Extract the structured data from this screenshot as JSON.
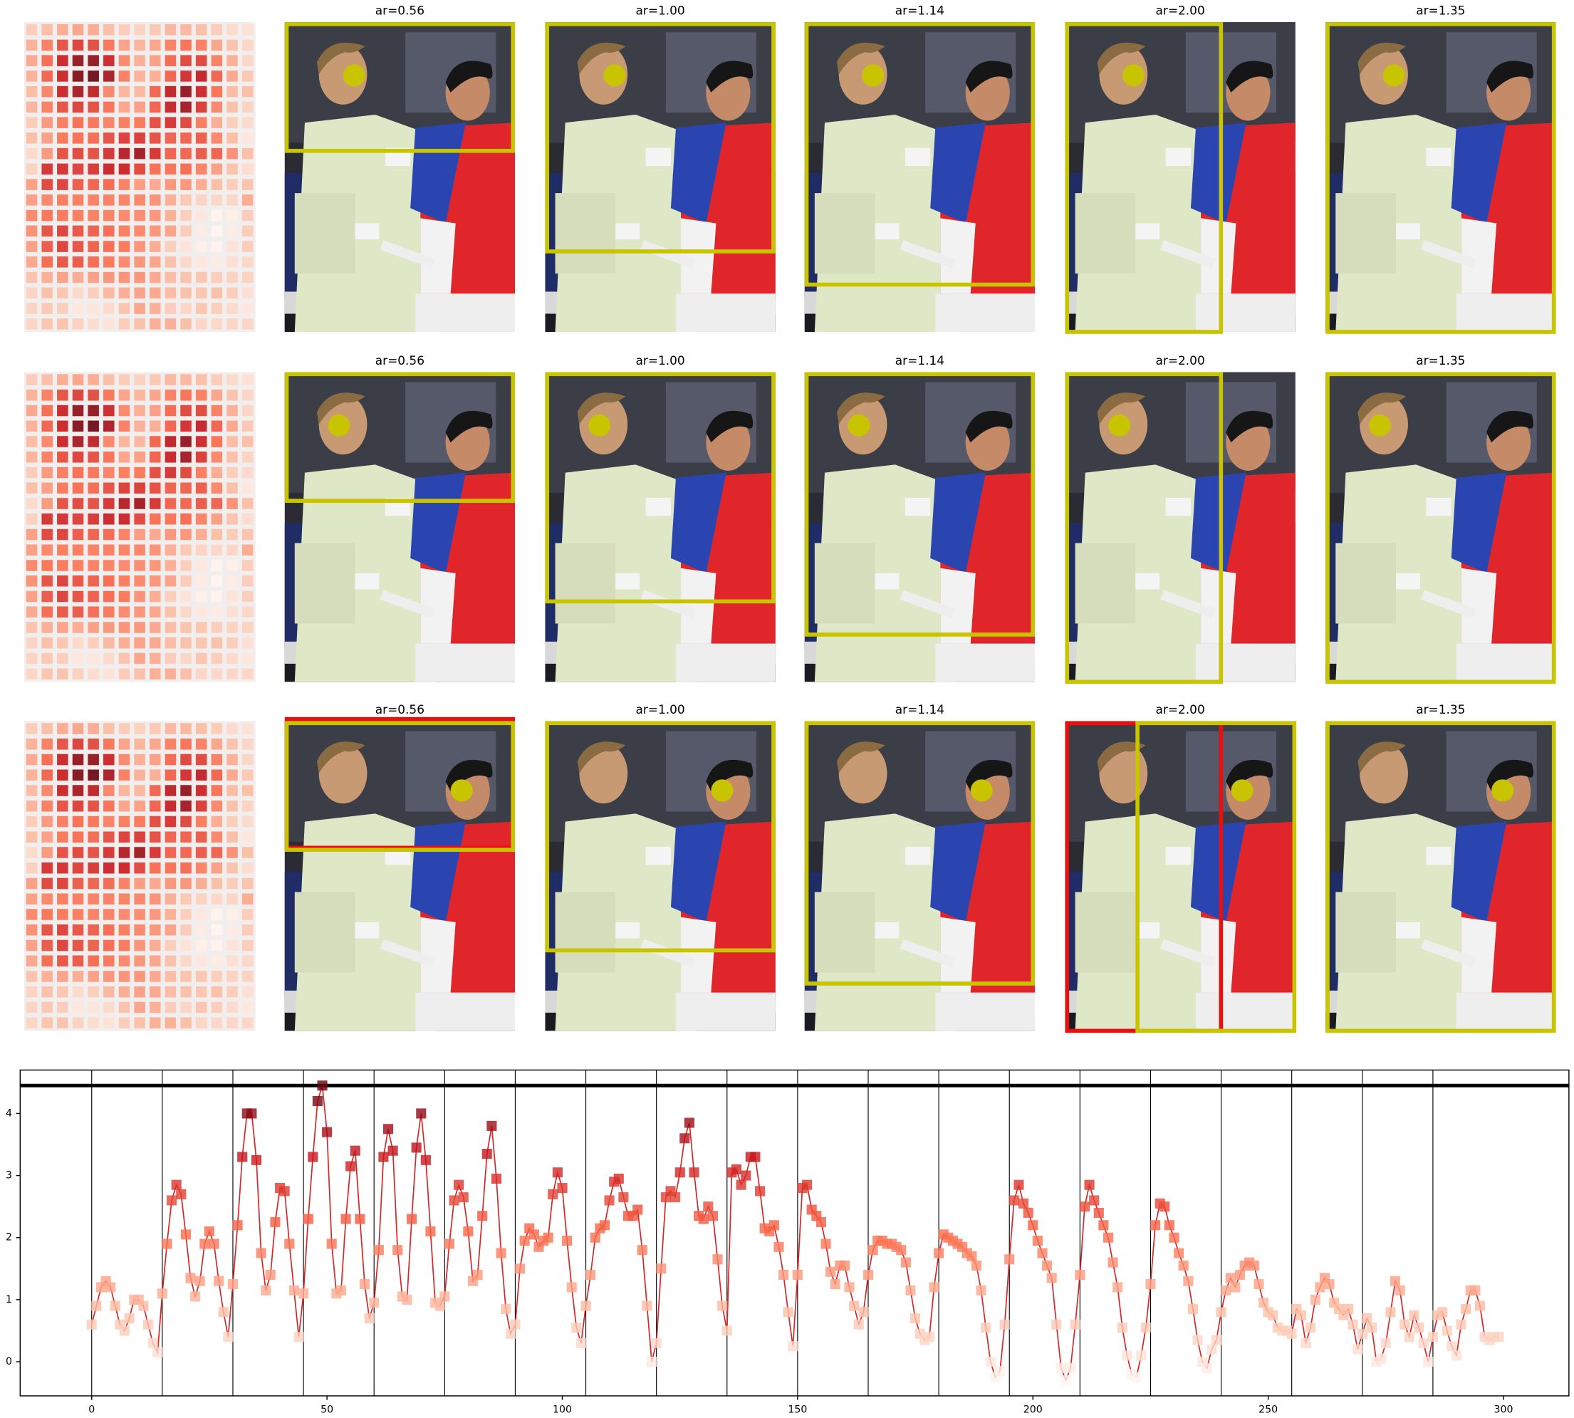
{
  "image_grid": {
    "rows": [
      {
        "titles": [
          "ar=0.56",
          "ar=1.00",
          "ar=1.14",
          "ar=2.00",
          "ar=1.35"
        ]
      },
      {
        "titles": [
          "ar=0.56",
          "ar=1.00",
          "ar=1.14",
          "ar=2.00",
          "ar=1.35"
        ]
      },
      {
        "titles": [
          "ar=0.56",
          "ar=1.00",
          "ar=1.14",
          "ar=2.00",
          "ar=1.35"
        ]
      }
    ]
  },
  "chart_data": {
    "type": "line",
    "colormap": "Reds",
    "xlim": [
      -15.2,
      313.9
    ],
    "ylim": [
      -0.55,
      4.7
    ],
    "xticks": [
      0,
      50,
      100,
      150,
      200,
      250,
      300
    ],
    "yticks": [
      0,
      1,
      2,
      3,
      4
    ],
    "vlines": [
      0,
      15,
      30,
      45,
      60,
      75,
      90,
      105,
      120,
      135,
      150,
      165,
      180,
      195,
      210,
      225,
      240,
      255,
      270,
      285
    ],
    "hline": 4.45,
    "x": [
      0,
      1,
      2,
      3,
      4,
      5,
      6,
      7,
      8,
      9,
      10,
      11,
      12,
      13,
      14,
      15,
      16,
      17,
      18,
      19,
      20,
      21,
      22,
      23,
      24,
      25,
      26,
      27,
      28,
      29,
      30,
      31,
      32,
      33,
      34,
      35,
      36,
      37,
      38,
      39,
      40,
      41,
      42,
      43,
      44,
      45,
      46,
      47,
      48,
      49,
      50,
      51,
      52,
      53,
      54,
      55,
      56,
      57,
      58,
      59,
      60,
      61,
      62,
      63,
      64,
      65,
      66,
      67,
      68,
      69,
      70,
      71,
      72,
      73,
      74,
      75,
      76,
      77,
      78,
      79,
      80,
      81,
      82,
      83,
      84,
      85,
      86,
      87,
      88,
      89,
      90,
      91,
      92,
      93,
      94,
      95,
      96,
      97,
      98,
      99,
      100,
      101,
      102,
      103,
      104,
      105,
      106,
      107,
      108,
      109,
      110,
      111,
      112,
      113,
      114,
      115,
      116,
      117,
      118,
      119,
      120,
      121,
      122,
      123,
      124,
      125,
      126,
      127,
      128,
      129,
      130,
      131,
      132,
      133,
      134,
      135,
      136,
      137,
      138,
      139,
      140,
      141,
      142,
      143,
      144,
      145,
      146,
      147,
      148,
      149,
      150,
      151,
      152,
      153,
      154,
      155,
      156,
      157,
      158,
      159,
      160,
      161,
      162,
      163,
      164,
      165,
      166,
      167,
      168,
      169,
      170,
      171,
      172,
      173,
      174,
      175,
      176,
      177,
      178,
      179,
      180,
      181,
      182,
      183,
      184,
      185,
      186,
      187,
      188,
      189,
      190,
      191,
      192,
      193,
      194,
      195,
      196,
      197,
      198,
      199,
      200,
      201,
      202,
      203,
      204,
      205,
      206,
      207,
      208,
      209,
      210,
      211,
      212,
      213,
      214,
      215,
      216,
      217,
      218,
      219,
      220,
      221,
      222,
      223,
      224,
      225,
      226,
      227,
      228,
      229,
      230,
      231,
      232,
      233,
      234,
      235,
      236,
      237,
      238,
      239,
      240,
      241,
      242,
      243,
      244,
      245,
      246,
      247,
      248,
      249,
      250,
      251,
      252,
      253,
      254,
      255,
      256,
      257,
      258,
      259,
      260,
      261,
      262,
      263,
      264,
      265,
      266,
      267,
      268,
      269,
      270,
      271,
      272,
      273,
      274,
      275,
      276,
      277,
      278,
      279,
      280,
      281,
      282,
      283,
      284,
      285,
      286,
      287,
      288,
      289,
      290,
      291,
      292,
      293,
      294,
      295,
      296,
      297,
      298,
      299
    ],
    "series": [
      {
        "color": "#d62728",
        "values": [
          0.6,
          0.9,
          1.2,
          1.3,
          1.2,
          0.9,
          0.6,
          0.5,
          0.7,
          1.0,
          1.0,
          0.9,
          0.6,
          0.3,
          0.15,
          1.1,
          1.9,
          2.6,
          2.85,
          2.7,
          2.05,
          1.35,
          1.05,
          1.3,
          1.9,
          2.1,
          1.9,
          1.3,
          0.8,
          0.4,
          1.25,
          2.2,
          3.3,
          4.0,
          4.0,
          3.25,
          1.75,
          1.15,
          1.4,
          2.25,
          2.8,
          2.75,
          1.9,
          1.15,
          0.4,
          1.1,
          2.3,
          3.3,
          4.2,
          4.45,
          3.7,
          1.9,
          1.1,
          1.15,
          2.3,
          3.15,
          3.4,
          2.3,
          1.25,
          0.7,
          0.95,
          1.8,
          3.3,
          3.75,
          3.4,
          1.8,
          1.05,
          1.0,
          2.3,
          3.45,
          4.0,
          3.25,
          2.1,
          0.95,
          0.9,
          1.05,
          1.9,
          2.6,
          2.85,
          2.65,
          2.1,
          1.3,
          1.4,
          2.35,
          3.35,
          3.8,
          2.95,
          1.75,
          0.85,
          0.45,
          0.6,
          1.5,
          1.95,
          2.15,
          2.05,
          1.85,
          1.95,
          2.0,
          2.7,
          3.05,
          2.8,
          1.95,
          1.2,
          0.55,
          0.3,
          0.9,
          1.4,
          2.0,
          2.15,
          2.2,
          2.6,
          2.9,
          2.95,
          2.65,
          2.35,
          2.35,
          2.45,
          1.8,
          0.9,
          0.0,
          0.3,
          1.5,
          2.65,
          2.75,
          2.65,
          3.05,
          3.6,
          3.85,
          3.05,
          2.35,
          2.3,
          2.5,
          2.35,
          1.65,
          0.9,
          0.5,
          3.05,
          3.1,
          2.85,
          3.0,
          3.3,
          3.3,
          2.75,
          2.15,
          2.1,
          2.2,
          1.85,
          1.4,
          0.8,
          0.25,
          1.4,
          2.8,
          2.85,
          2.45,
          2.35,
          2.25,
          1.9,
          1.45,
          1.25,
          1.55,
          1.55,
          1.2,
          0.9,
          0.6,
          0.8,
          1.4,
          1.8,
          1.95,
          1.95,
          1.9,
          1.9,
          1.85,
          1.8,
          1.6,
          1.15,
          0.7,
          0.45,
          0.35,
          0.4,
          1.2,
          1.75,
          2.05,
          2.0,
          1.95,
          1.9,
          1.85,
          1.75,
          1.7,
          1.55,
          1.15,
          0.55,
          0.0,
          -0.25,
          -0.15,
          0.6,
          1.65,
          2.6,
          2.85,
          2.55,
          2.4,
          2.2,
          1.95,
          1.75,
          1.55,
          1.35,
          0.6,
          -0.1,
          -0.3,
          -0.1,
          0.6,
          1.4,
          2.5,
          2.85,
          2.6,
          2.4,
          2.2,
          2.0,
          1.6,
          1.2,
          0.55,
          0.1,
          -0.2,
          -0.25,
          0.1,
          0.55,
          1.25,
          2.2,
          2.55,
          2.5,
          2.2,
          2.0,
          1.75,
          1.55,
          1.3,
          0.85,
          0.35,
          0.0,
          -0.1,
          0.2,
          0.35,
          0.8,
          1.15,
          1.35,
          1.2,
          1.4,
          1.55,
          1.6,
          1.55,
          1.25,
          0.95,
          0.8,
          0.75,
          0.55,
          0.5,
          0.5,
          0.45,
          0.85,
          0.75,
          0.3,
          0.55,
          1.0,
          1.2,
          1.35,
          1.25,
          0.95,
          0.85,
          0.75,
          0.85,
          0.6,
          0.2,
          0.45,
          0.7,
          0.55,
          0.0,
          0.05,
          0.3,
          0.8,
          1.3,
          1.15,
          0.6,
          0.4,
          0.75,
          0.55,
          0.3,
          0.0,
          0.4,
          0.75,
          0.8,
          0.5,
          0.25,
          0.1,
          0.6,
          0.85,
          1.15,
          1.15,
          0.9,
          0.4,
          0.35,
          0.4,
          0.4
        ]
      }
    ]
  }
}
